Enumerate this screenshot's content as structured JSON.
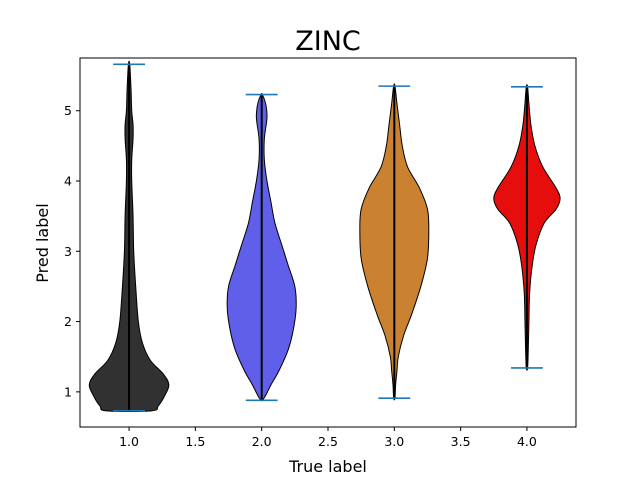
{
  "chart_data": {
    "type": "violin",
    "title": "ZINC",
    "xlabel": "True label",
    "ylabel": "Pred label",
    "xlim": [
      0.63,
      4.37
    ],
    "ylim": [
      0.5,
      5.75
    ],
    "xticks": [
      "1.0",
      "1.5",
      "2.0",
      "2.5",
      "3.0",
      "3.5",
      "4.0"
    ],
    "yticks": [
      "1",
      "2",
      "3",
      "4",
      "5"
    ],
    "grid": false,
    "violins": [
      {
        "x": 1.0,
        "min": 0.73,
        "max": 5.66,
        "color": "#262626",
        "profile": [
          [
            0.73,
            0.17
          ],
          [
            0.8,
            0.22
          ],
          [
            0.95,
            0.27
          ],
          [
            1.1,
            0.3
          ],
          [
            1.25,
            0.26
          ],
          [
            1.45,
            0.16
          ],
          [
            1.7,
            0.1
          ],
          [
            2.0,
            0.07
          ],
          [
            2.5,
            0.05
          ],
          [
            3.0,
            0.035
          ],
          [
            3.5,
            0.03
          ],
          [
            4.0,
            0.02
          ],
          [
            4.3,
            0.02
          ],
          [
            4.6,
            0.03
          ],
          [
            4.8,
            0.03
          ],
          [
            5.0,
            0.02
          ],
          [
            5.3,
            0.015
          ],
          [
            5.66,
            0.005
          ]
        ]
      },
      {
        "x": 2.0,
        "min": 0.88,
        "max": 5.23,
        "color": "#5656e8",
        "profile": [
          [
            0.88,
            0.005
          ],
          [
            0.95,
            0.03
          ],
          [
            1.1,
            0.07
          ],
          [
            1.3,
            0.13
          ],
          [
            1.6,
            0.2
          ],
          [
            1.9,
            0.24
          ],
          [
            2.2,
            0.26
          ],
          [
            2.5,
            0.25
          ],
          [
            2.8,
            0.2
          ],
          [
            3.1,
            0.15
          ],
          [
            3.4,
            0.1
          ],
          [
            3.7,
            0.07
          ],
          [
            4.0,
            0.04
          ],
          [
            4.3,
            0.02
          ],
          [
            4.6,
            0.02
          ],
          [
            4.9,
            0.04
          ],
          [
            5.1,
            0.03
          ],
          [
            5.23,
            0.005
          ]
        ]
      },
      {
        "x": 3.0,
        "min": 0.91,
        "max": 5.35,
        "color": "#c77a25",
        "profile": [
          [
            0.91,
            0.005
          ],
          [
            1.1,
            0.01
          ],
          [
            1.3,
            0.02
          ],
          [
            1.5,
            0.03
          ],
          [
            1.8,
            0.07
          ],
          [
            2.1,
            0.13
          ],
          [
            2.5,
            0.2
          ],
          [
            2.9,
            0.25
          ],
          [
            3.3,
            0.26
          ],
          [
            3.6,
            0.25
          ],
          [
            3.9,
            0.19
          ],
          [
            4.2,
            0.1
          ],
          [
            4.5,
            0.06
          ],
          [
            4.8,
            0.04
          ],
          [
            5.1,
            0.02
          ],
          [
            5.35,
            0.005
          ]
        ]
      },
      {
        "x": 4.0,
        "min": 1.34,
        "max": 5.34,
        "color": "#e50000",
        "profile": [
          [
            1.34,
            0.005
          ],
          [
            1.6,
            0.01
          ],
          [
            2.0,
            0.015
          ],
          [
            2.4,
            0.02
          ],
          [
            2.8,
            0.04
          ],
          [
            3.1,
            0.07
          ],
          [
            3.4,
            0.13
          ],
          [
            3.6,
            0.22
          ],
          [
            3.75,
            0.25
          ],
          [
            3.9,
            0.22
          ],
          [
            4.2,
            0.12
          ],
          [
            4.5,
            0.06
          ],
          [
            4.8,
            0.03
          ],
          [
            5.1,
            0.015
          ],
          [
            5.34,
            0.005
          ]
        ]
      }
    ],
    "colors": {
      "cap_line": "#1f77b4",
      "median_line": "#000000",
      "outline": "#000000"
    }
  }
}
